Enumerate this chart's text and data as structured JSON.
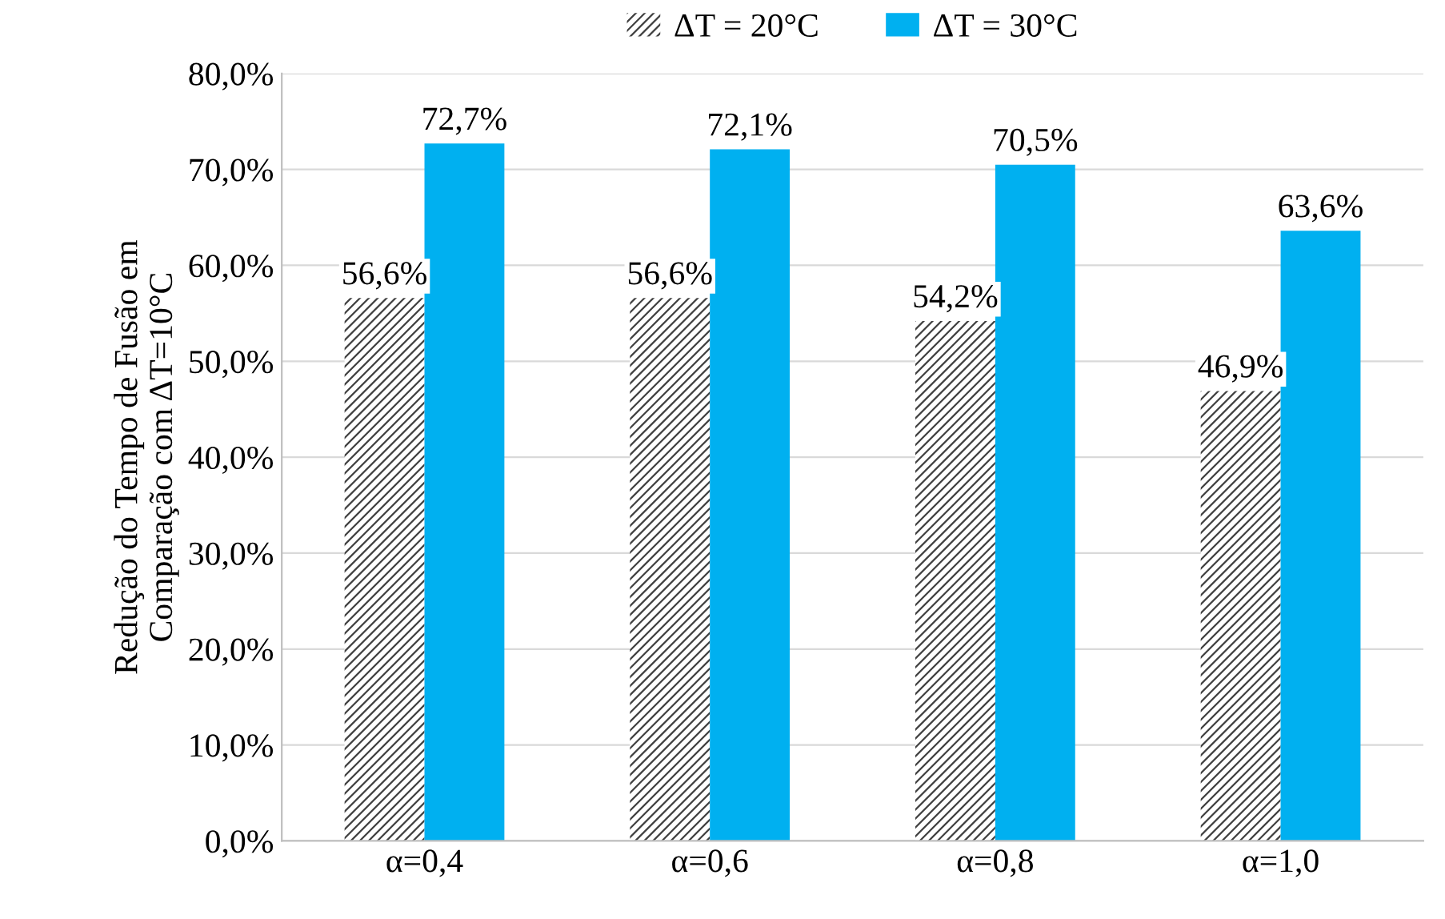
{
  "chart_data": {
    "type": "bar",
    "ylabel": "Redução do Tempo de Fusão em\nComparação com ΔT=10°C",
    "categories": [
      "α=0,4",
      "α=0,6",
      "α=0,8",
      "α=1,0"
    ],
    "series": [
      {
        "name": "ΔT = 20°C",
        "color": "#404040",
        "values": [
          56.6,
          56.6,
          54.2,
          46.9
        ],
        "value_labels": [
          "56,6%",
          "56,6%",
          "54,2%",
          "46,9%"
        ]
      },
      {
        "name": "ΔT = 30°C",
        "color": "#00b0f0",
        "values": [
          72.7,
          72.1,
          70.5,
          63.6
        ],
        "value_labels": [
          "72,7%",
          "72,1%",
          "70,5%",
          "63,6%"
        ]
      }
    ],
    "ylim": [
      0,
      80
    ],
    "yticks": [
      {
        "value": 0,
        "label": "0,0%"
      },
      {
        "value": 10,
        "label": "10,0%"
      },
      {
        "value": 20,
        "label": "20,0%"
      },
      {
        "value": 30,
        "label": "30,0%"
      },
      {
        "value": 40,
        "label": "40,0%"
      },
      {
        "value": 50,
        "label": "50,0%"
      },
      {
        "value": 60,
        "label": "60,0%"
      },
      {
        "value": 70,
        "label": "70,0%"
      },
      {
        "value": 80,
        "label": "80,0%"
      }
    ],
    "grid": "y",
    "legend": "top"
  }
}
